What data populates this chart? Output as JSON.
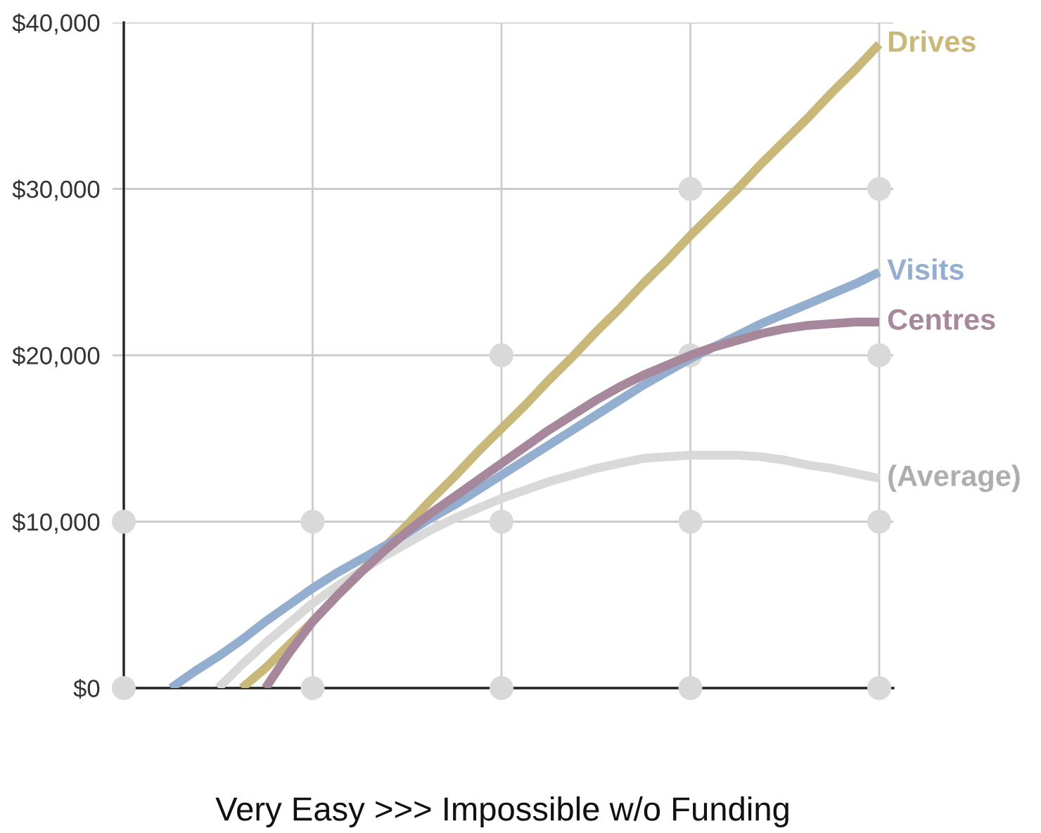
{
  "chart_data": {
    "type": "line",
    "xlabel": "Very Easy >>> Impossible w/o Funding",
    "categories": [
      null,
      null,
      null,
      null,
      null,
      null,
      null,
      null,
      null,
      null,
      null,
      null,
      null,
      null,
      null,
      null,
      null,
      null,
      null,
      null,
      null,
      null,
      null,
      null,
      null,
      null,
      null,
      null,
      null,
      null,
      null,
      null,
      null
    ],
    "ylim": [
      0,
      40000
    ],
    "yticks": [
      {
        "value": 0,
        "label": "$0"
      },
      {
        "value": 10000,
        "label": "$10,000"
      },
      {
        "value": 20000,
        "label": "$20,000"
      },
      {
        "value": 30000,
        "label": "$30,000"
      },
      {
        "value": 40000,
        "label": "$40,000"
      }
    ],
    "tick_labels": "y",
    "grid": true,
    "line_style": "solid",
    "marker": "none",
    "series": [
      {
        "type": "scatter",
        "marker": "circle",
        "color": "#d9d9d9",
        "values": [
          0,
          null,
          null,
          null,
          null,
          null,
          null,
          null,
          0,
          null,
          null,
          null,
          null,
          null,
          null,
          null,
          0,
          null,
          null,
          null,
          null,
          null,
          null,
          null,
          0,
          null,
          null,
          null,
          null,
          null,
          null,
          null,
          0
        ]
      },
      {
        "type": "scatter",
        "marker": "circle",
        "color": "#d9d9d9",
        "values": [
          10000,
          null,
          null,
          null,
          null,
          null,
          null,
          null,
          10000,
          null,
          null,
          null,
          null,
          null,
          null,
          null,
          10000,
          null,
          null,
          null,
          null,
          null,
          null,
          null,
          10000,
          null,
          null,
          null,
          null,
          null,
          null,
          null,
          10000
        ]
      },
      {
        "type": "scatter",
        "marker": "circle",
        "color": "#d9d9d9",
        "values": [
          null,
          null,
          null,
          null,
          null,
          null,
          null,
          null,
          null,
          null,
          null,
          null,
          null,
          null,
          null,
          null,
          20000,
          null,
          null,
          null,
          null,
          null,
          null,
          null,
          20000,
          null,
          null,
          null,
          null,
          null,
          null,
          null,
          20000
        ]
      },
      {
        "type": "scatter",
        "marker": "circle",
        "color": "#d9d9d9",
        "values": [
          null,
          null,
          null,
          null,
          null,
          null,
          null,
          null,
          null,
          null,
          null,
          null,
          null,
          null,
          null,
          null,
          null,
          null,
          null,
          null,
          null,
          null,
          null,
          null,
          30000,
          null,
          null,
          null,
          null,
          null,
          null,
          null,
          30000
        ]
      },
      {
        "name": "(Average)",
        "color": "#d9d9d9",
        "values": [
          null,
          null,
          null,
          null,
          0,
          1400,
          2700,
          3900,
          5100,
          6100,
          7000,
          7900,
          8700,
          9500,
          10200,
          10800,
          11400,
          11900,
          12400,
          12800,
          13200,
          13500,
          13800,
          13900,
          14000,
          14000,
          14000,
          13900,
          13700,
          13400,
          13200,
          12900,
          12600
        ]
      },
      {
        "name": "Drives",
        "color": "#c8b97a",
        "values": [
          null,
          null,
          null,
          null,
          null,
          0,
          1200,
          2600,
          4000,
          5500,
          6900,
          8400,
          9800,
          11300,
          12700,
          14200,
          15600,
          17000,
          18500,
          19900,
          21400,
          22800,
          24300,
          25700,
          27200,
          28600,
          30000,
          31500,
          32900,
          34300,
          35800,
          37200,
          38700
        ]
      },
      {
        "name": "Visits",
        "color": "#94aed0",
        "values": [
          null,
          null,
          0,
          1000,
          1900,
          2900,
          4000,
          5000,
          6000,
          6900,
          7700,
          8500,
          9300,
          10200,
          11000,
          11900,
          12800,
          13700,
          14600,
          15500,
          16400,
          17300,
          18200,
          19000,
          19800,
          20500,
          21200,
          21900,
          22500,
          23100,
          23700,
          24300,
          25000
        ]
      },
      {
        "name": "Centres",
        "color": "#a7879b",
        "values": [
          null,
          null,
          null,
          null,
          null,
          null,
          0,
          2100,
          4000,
          5500,
          6900,
          8200,
          9400,
          10500,
          11500,
          12500,
          13500,
          14500,
          15500,
          16400,
          17300,
          18100,
          18800,
          19400,
          20000,
          20500,
          20900,
          21300,
          21600,
          21800,
          21900,
          22000,
          22000
        ]
      }
    ]
  }
}
